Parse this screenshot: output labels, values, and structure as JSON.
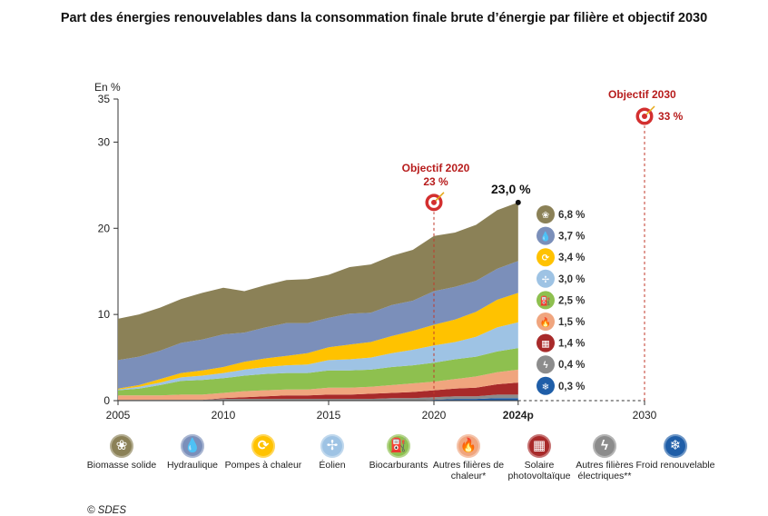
{
  "title": "Part des énergies renouvelables dans la consommation finale brute d’énergie par filière et objectif 2030",
  "source": "© SDES",
  "chart_data": {
    "type": "area",
    "stacked": true,
    "ylabel": "En %",
    "ylim": [
      0,
      35
    ],
    "yticks": [
      "0",
      "10",
      "20",
      "30",
      "35"
    ],
    "xticks": [
      "2005",
      "2010",
      "2015",
      "2020",
      "2024p",
      "2030"
    ],
    "x": [
      2005,
      2006,
      2007,
      2008,
      2009,
      2010,
      2011,
      2012,
      2013,
      2014,
      2015,
      2016,
      2017,
      2018,
      2019,
      2020,
      2021,
      2022,
      2023,
      2024
    ],
    "last_label": "23,0 %",
    "objectives": [
      {
        "label": "Objectif 2020",
        "value_label": "23 %",
        "x": 2020,
        "y": 23
      },
      {
        "label": "Objectif 2030",
        "value_label": "33 %",
        "x": 2030,
        "y": 33
      }
    ],
    "series": [
      {
        "name": "Froid renouvelable",
        "color": "#1f5ea8",
        "icon": "snowflake-icon",
        "end_label": "0,3 %",
        "values": [
          0,
          0,
          0,
          0,
          0,
          0,
          0,
          0,
          0,
          0,
          0,
          0,
          0,
          0,
          0,
          0.1,
          0.2,
          0.2,
          0.3,
          0.3
        ]
      },
      {
        "name": "Autres filières électriques**",
        "color": "#8c8c8c",
        "icon": "bolt-icon",
        "end_label": "0,4 %",
        "values": [
          0.1,
          0.1,
          0.1,
          0.1,
          0.1,
          0.2,
          0.2,
          0.2,
          0.2,
          0.2,
          0.2,
          0.2,
          0.2,
          0.3,
          0.3,
          0.3,
          0.3,
          0.3,
          0.4,
          0.4
        ]
      },
      {
        "name": "Solaire photovoltaïque",
        "color": "#a82a2a",
        "icon": "solar-panel-icon",
        "end_label": "1,4 %",
        "values": [
          0,
          0,
          0,
          0,
          0,
          0.1,
          0.2,
          0.3,
          0.4,
          0.4,
          0.5,
          0.5,
          0.6,
          0.6,
          0.7,
          0.8,
          0.9,
          1.0,
          1.2,
          1.4
        ]
      },
      {
        "name": "Autres filières de chaleur*",
        "color": "#f0a57e",
        "icon": "flame-icon",
        "end_label": "1,5 %",
        "values": [
          0.5,
          0.5,
          0.5,
          0.6,
          0.6,
          0.6,
          0.7,
          0.7,
          0.7,
          0.7,
          0.8,
          0.8,
          0.8,
          0.9,
          1.0,
          1.0,
          1.1,
          1.3,
          1.4,
          1.5
        ]
      },
      {
        "name": "Biocarburants",
        "color": "#8ec04f",
        "icon": "fuel-pump-icon",
        "end_label": "2,5 %",
        "values": [
          0.6,
          0.8,
          1.2,
          1.6,
          1.7,
          1.7,
          1.8,
          1.9,
          1.9,
          1.9,
          2.0,
          2.0,
          2.0,
          2.1,
          2.1,
          2.2,
          2.3,
          2.3,
          2.4,
          2.5
        ]
      },
      {
        "name": "Éolien",
        "color": "#9ec3e4",
        "icon": "wind-turbine-icon",
        "end_label": "3,0 %",
        "values": [
          0.1,
          0.2,
          0.3,
          0.4,
          0.5,
          0.6,
          0.7,
          0.8,
          0.9,
          1.0,
          1.2,
          1.3,
          1.4,
          1.6,
          1.8,
          2.0,
          2.0,
          2.3,
          2.8,
          3.0
        ]
      },
      {
        "name": "Pompes à chaleur",
        "color": "#ffc200",
        "icon": "heat-pump-icon",
        "end_label": "3,4 %",
        "values": [
          0.1,
          0.2,
          0.4,
          0.5,
          0.6,
          0.7,
          0.9,
          1.0,
          1.1,
          1.3,
          1.5,
          1.7,
          1.8,
          2.0,
          2.2,
          2.4,
          2.6,
          2.9,
          3.2,
          3.4
        ]
      },
      {
        "name": "Hydraulique",
        "color": "#7b8fba",
        "icon": "water-drop-icon",
        "end_label": "3,7 %",
        "values": [
          3.3,
          3.3,
          3.3,
          3.5,
          3.6,
          3.8,
          3.4,
          3.6,
          3.8,
          3.5,
          3.4,
          3.6,
          3.4,
          3.6,
          3.5,
          3.9,
          3.8,
          3.6,
          3.6,
          3.7
        ]
      },
      {
        "name": "Biomasse solide",
        "color": "#8b8157",
        "icon": "biomass-icon",
        "end_label": "6,8 %",
        "values": [
          4.8,
          4.9,
          5.0,
          5.1,
          5.4,
          5.4,
          4.8,
          4.9,
          5.0,
          5.1,
          5.0,
          5.4,
          5.6,
          5.7,
          5.9,
          6.4,
          6.3,
          6.5,
          6.8,
          6.8
        ]
      }
    ]
  },
  "legend": [
    {
      "label": "Biomasse solide",
      "color": "#8b8157",
      "glyph": "❀"
    },
    {
      "label": "Hydraulique",
      "color": "#7b8fba",
      "glyph": "💧"
    },
    {
      "label": "Pompes à chaleur",
      "color": "#ffc200",
      "glyph": "⟳"
    },
    {
      "label": "Éolien",
      "color": "#9ec3e4",
      "glyph": "✢"
    },
    {
      "label": "Biocarburants",
      "color": "#8ec04f",
      "glyph": "⛽"
    },
    {
      "label": "Autres filières de chaleur*",
      "color": "#f0a57e",
      "glyph": "🔥"
    },
    {
      "label": "Solaire photovoltaïque",
      "color": "#a82a2a",
      "glyph": "▦"
    },
    {
      "label": "Autres filières électriques**",
      "color": "#8c8c8c",
      "glyph": "ϟ"
    },
    {
      "label": "Froid renouvelable",
      "color": "#1f5ea8",
      "glyph": "❄"
    }
  ]
}
